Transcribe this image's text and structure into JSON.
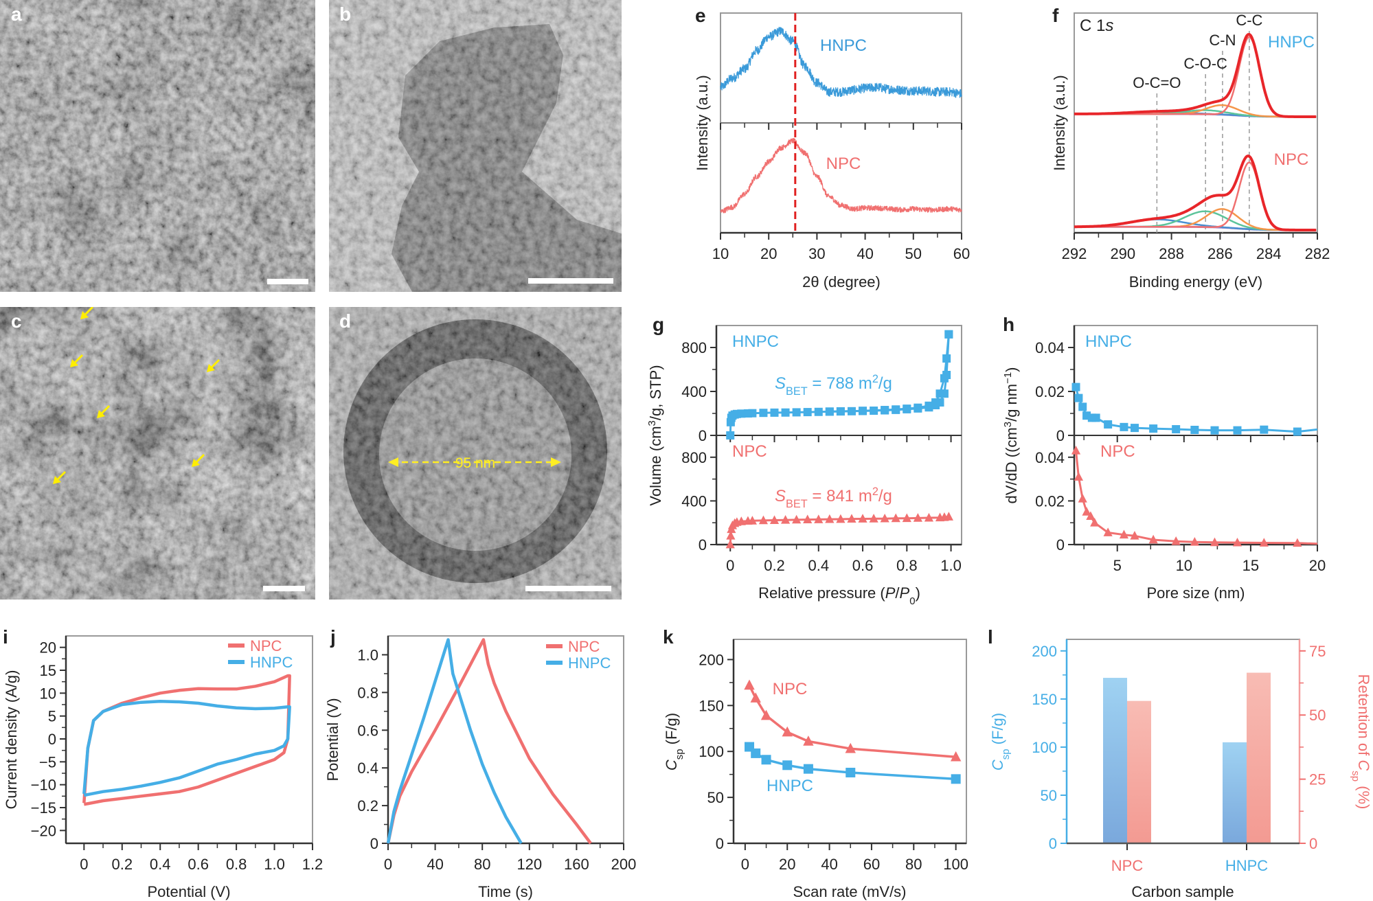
{
  "panel_labels": [
    "a",
    "b",
    "c",
    "d",
    "e",
    "f",
    "g",
    "h",
    "i",
    "j",
    "k",
    "l"
  ],
  "micrographs": {
    "d_annotation": "95 nm"
  },
  "colors": {
    "hnpc": "#45aee6",
    "npc": "#f07070",
    "reference_line": "#e02020",
    "envelope": "#e8262a"
  },
  "chart_data": [
    {
      "type": "line",
      "xlabel": [
        {
          "t": "2θ (degree)"
        }
      ],
      "ylabel": "Intensity (a.u.)",
      "xlim": [
        10,
        60
      ],
      "xticks": [
        "10",
        "20",
        "30",
        "40",
        "50",
        "60"
      ],
      "reference_line_2theta": 25.5,
      "series": [
        {
          "name": "HNPC",
          "x": [
            10,
            12.5,
            15,
            17.5,
            20,
            22.5,
            25,
            27.5,
            30,
            32.5,
            35,
            37.5,
            40,
            42.5,
            45,
            47.5,
            50,
            52.5,
            55,
            57.5,
            60
          ],
          "y": [
            0.35,
            0.45,
            0.55,
            0.75,
            0.9,
            0.96,
            0.85,
            0.58,
            0.4,
            0.3,
            0.3,
            0.32,
            0.34,
            0.35,
            0.33,
            0.32,
            0.31,
            0.31,
            0.3,
            0.3,
            0.28
          ]
        },
        {
          "name": "NPC",
          "x": [
            10,
            12.5,
            15,
            17.5,
            20,
            22.5,
            25,
            27.5,
            30,
            32.5,
            35,
            37.5,
            40,
            42.5,
            45,
            47.5,
            50,
            52.5,
            55,
            57.5,
            60
          ],
          "y": [
            0.15,
            0.2,
            0.35,
            0.55,
            0.72,
            0.88,
            0.96,
            0.82,
            0.55,
            0.32,
            0.22,
            0.18,
            0.19,
            0.19,
            0.18,
            0.17,
            0.18,
            0.17,
            0.17,
            0.18,
            0.17
          ]
        }
      ]
    },
    {
      "type": "line",
      "title_parts": [
        {
          "t": "C 1"
        },
        {
          "t": "s",
          "it": true
        }
      ],
      "xlabel": [
        {
          "t": "Binding energy (eV)"
        }
      ],
      "ylabel": "Intensity (a.u.)",
      "xlim": [
        292,
        282
      ],
      "xticks": [
        "292",
        "290",
        "288",
        "286",
        "284",
        "282"
      ],
      "components": [
        {
          "name": "C-C",
          "center": 284.8,
          "sigma": 0.42,
          "color": "#f07070"
        },
        {
          "name": "C-N",
          "center": 285.9,
          "sigma": 0.65,
          "color": "#f5964a"
        },
        {
          "name": "C-O-C",
          "center": 286.6,
          "sigma": 0.85,
          "color": "#5cc49a"
        },
        {
          "name": "O-C=O",
          "center": 288.6,
          "sigma": 1.1,
          "color": "#4a8fd0"
        }
      ],
      "background_color": "#a68bd0",
      "series": [
        {
          "name": "HNPC",
          "amplitudes": [
            1.0,
            0.12,
            0.05,
            0.03
          ]
        },
        {
          "name": "NPC",
          "amplitudes": [
            0.72,
            0.2,
            0.17,
            0.08
          ]
        }
      ]
    },
    {
      "type": "scatter",
      "xlabel": [
        {
          "t": "Relative pressure ("
        },
        {
          "t": "P",
          "it": true
        },
        {
          "t": "/"
        },
        {
          "t": "P",
          "it": true
        },
        {
          "t": "0",
          "sub": true
        },
        {
          "t": ")"
        }
      ],
      "ylabel": [
        {
          "t": "Volume (cm"
        },
        {
          "t": "3",
          "sup": true
        },
        {
          "t": "/g, STP)"
        }
      ],
      "xlim": [
        -0.063,
        1.048
      ],
      "ylim": [
        0,
        1000
      ],
      "xticks": [
        "0",
        "0.2",
        "0.4",
        "0.6",
        "0.8",
        "1.0"
      ],
      "yticks": [
        "0",
        "400",
        "800"
      ],
      "series": [
        {
          "name": "HNPC",
          "marker": "square",
          "annotation": [
            {
              "t": "S",
              "it": true
            },
            {
              "t": "BET",
              "sub": true
            },
            {
              "t": " = 788 m"
            },
            {
              "t": "2",
              "sup": true
            },
            {
              "t": "/g"
            }
          ],
          "adsorption": {
            "x": [
              0,
              0.002,
              0.005,
              0.01,
              0.02,
              0.03,
              0.05,
              0.08,
              0.1,
              0.15,
              0.2,
              0.25,
              0.3,
              0.35,
              0.4,
              0.45,
              0.5,
              0.55,
              0.6,
              0.65,
              0.7,
              0.75,
              0.8,
              0.85,
              0.9,
              0.93,
              0.95,
              0.97,
              0.98,
              0.99
            ],
            "y": [
              0,
              120,
              160,
              180,
              190,
              195,
              198,
              200,
              202,
              205,
              207,
              208,
              210,
              212,
              214,
              216,
              218,
              220,
              222,
              225,
              228,
              232,
              238,
              245,
              255,
              275,
              300,
              380,
              550,
              920
            ]
          },
          "desorption": {
            "x": [
              0.99,
              0.98,
              0.97,
              0.95,
              0.93,
              0.9,
              0.85,
              0.8,
              0.75,
              0.7,
              0.6,
              0.5,
              0.45
            ],
            "y": [
              920,
              700,
              520,
              380,
              300,
              270,
              252,
              243,
              236,
              231,
              224,
              219,
              217
            ]
          }
        },
        {
          "name": "NPC",
          "marker": "triangle",
          "annotation": [
            {
              "t": "S",
              "it": true
            },
            {
              "t": "BET",
              "sub": true
            },
            {
              "t": " = 841 m"
            },
            {
              "t": "2",
              "sup": true
            },
            {
              "t": "/g"
            }
          ],
          "adsorption": {
            "x": [
              0,
              0.002,
              0.005,
              0.01,
              0.02,
              0.03,
              0.05,
              0.08,
              0.1,
              0.15,
              0.2,
              0.25,
              0.3,
              0.35,
              0.4,
              0.45,
              0.5,
              0.55,
              0.6,
              0.65,
              0.7,
              0.75,
              0.8,
              0.85,
              0.9,
              0.95,
              0.97,
              0.99
            ],
            "y": [
              0,
              80,
              140,
              175,
              195,
              205,
              212,
              216,
              218,
              221,
              223,
              225,
              227,
              229,
              230,
              232,
              233,
              235,
              236,
              237,
              238,
              240,
              241,
              243,
              245,
              247,
              250,
              255
            ]
          }
        }
      ]
    },
    {
      "type": "scatter",
      "xlabel": [
        {
          "t": "Pore size (nm)"
        }
      ],
      "ylabel": [
        {
          "t": "dV/dD ((cm"
        },
        {
          "t": "3",
          "sup": true
        },
        {
          "t": "/g nm"
        },
        {
          "t": "−1",
          "sup": true
        },
        {
          "t": ")"
        }
      ],
      "xlim": [
        1.77,
        20
      ],
      "ylim": [
        0,
        0.05
      ],
      "xticks": [
        "5",
        "10",
        "15",
        "20"
      ],
      "yticks": [
        "0",
        "0.02",
        "0.04"
      ],
      "series": [
        {
          "name": "HNPC",
          "marker": "square",
          "x": [
            1.9,
            2.1,
            2.4,
            2.7,
            3.1,
            3.4,
            4.3,
            5.5,
            6.3,
            7.7,
            9.4,
            10.8,
            12.3,
            14,
            16,
            18.5,
            20
          ],
          "y": [
            0.022,
            0.017,
            0.013,
            0.009,
            0.008,
            0.008,
            0.005,
            0.0038,
            0.0034,
            0.0031,
            0.0028,
            0.0025,
            0.0023,
            0.0023,
            0.0026,
            0.0017,
            0.0027
          ]
        },
        {
          "name": "NPC",
          "marker": "triangle",
          "x": [
            1.9,
            2.1,
            2.4,
            2.7,
            3.0,
            3.3,
            4.3,
            5.5,
            6.3,
            7.7,
            9.4,
            10.8,
            12.3,
            14,
            16,
            18.5,
            20
          ],
          "y": [
            0.043,
            0.031,
            0.021,
            0.015,
            0.013,
            0.01,
            0.0055,
            0.0045,
            0.004,
            0.0022,
            0.0015,
            0.0012,
            0.001,
            0.0009,
            0.0008,
            0.0007,
            0.0004
          ]
        }
      ]
    },
    {
      "type": "line",
      "xlabel": [
        {
          "t": "Potential (V)"
        }
      ],
      "ylabel": [
        {
          "t": "Current density (A/g)"
        }
      ],
      "xlim": [
        -0.095,
        1.2
      ],
      "ylim": [
        -22.8,
        22.5
      ],
      "xticks": [
        "0",
        "0.2",
        "0.4",
        "0.6",
        "0.8",
        "1.0",
        "1.2"
      ],
      "yticks": [
        "20",
        "15",
        "10",
        "5",
        "0",
        "−5",
        "−10",
        "−15",
        "−20"
      ],
      "legend": "top-right",
      "series": [
        {
          "name": "NPC",
          "x": [
            0,
            0.02,
            0.05,
            0.1,
            0.2,
            0.3,
            0.4,
            0.5,
            0.6,
            0.7,
            0.8,
            0.9,
            1.0,
            1.07,
            1.08,
            1.07,
            1.05,
            1.0,
            0.9,
            0.8,
            0.7,
            0.6,
            0.5,
            0.4,
            0.3,
            0.2,
            0.1,
            0
          ],
          "y": [
            -14,
            -2,
            4,
            6,
            7.8,
            9,
            10,
            10.6,
            11,
            10.9,
            10.9,
            11.5,
            12.5,
            13.8,
            13.8,
            0,
            -3,
            -4.5,
            -6,
            -7.5,
            -9,
            -10.5,
            -11.5,
            -12,
            -12.5,
            -13,
            -13.5,
            -14.3
          ]
        },
        {
          "name": "HNPC",
          "x": [
            0,
            0.02,
            0.05,
            0.1,
            0.2,
            0.3,
            0.4,
            0.5,
            0.6,
            0.7,
            0.8,
            0.9,
            1.0,
            1.07,
            1.08,
            1.07,
            1.05,
            1.0,
            0.9,
            0.8,
            0.7,
            0.6,
            0.5,
            0.4,
            0.3,
            0.2,
            0.1,
            0
          ],
          "y": [
            -12,
            -2,
            4,
            6,
            7.5,
            8,
            8.2,
            8.1,
            7.8,
            7.2,
            6.8,
            6.6,
            6.7,
            7,
            7,
            0,
            -1.5,
            -2.5,
            -3.3,
            -4.5,
            -5.5,
            -7,
            -8.5,
            -9.5,
            -10.3,
            -11,
            -11.5,
            -12.3
          ]
        }
      ]
    },
    {
      "type": "line",
      "xlabel": [
        {
          "t": "Time (s)"
        }
      ],
      "ylabel": [
        {
          "t": "Potential (V)"
        }
      ],
      "xlim": [
        0,
        200
      ],
      "ylim": [
        0,
        1.1
      ],
      "xticks": [
        "0",
        "40",
        "80",
        "120",
        "160",
        "200"
      ],
      "yticks": [
        "0",
        "0.2",
        "0.4",
        "0.6",
        "0.8",
        "1.0"
      ],
      "legend": "top-right",
      "series": [
        {
          "name": "NPC",
          "x": [
            0,
            5,
            10,
            20,
            40,
            60,
            81,
            85,
            90,
            100,
            120,
            140,
            160,
            172
          ],
          "y": [
            0,
            0.15,
            0.25,
            0.38,
            0.6,
            0.83,
            1.08,
            0.95,
            0.85,
            0.7,
            0.45,
            0.26,
            0.1,
            0
          ]
        },
        {
          "name": "HNPC",
          "x": [
            0,
            5,
            10,
            20,
            30,
            40,
            51,
            55,
            60,
            70,
            80,
            90,
            100,
            113
          ],
          "y": [
            0,
            0.17,
            0.28,
            0.47,
            0.66,
            0.86,
            1.08,
            0.9,
            0.8,
            0.6,
            0.42,
            0.27,
            0.14,
            0
          ]
        }
      ]
    },
    {
      "type": "line",
      "xlabel": [
        {
          "t": "Scan rate (mV/s)"
        }
      ],
      "ylabel": [
        {
          "t": "C",
          "it": true
        },
        {
          "t": "sp",
          "sub": true
        },
        {
          "t": " (F/g)"
        }
      ],
      "xlim": [
        -5.5,
        105
      ],
      "ylim": [
        0,
        222
      ],
      "xticks": [
        "0",
        "20",
        "40",
        "60",
        "80",
        "100"
      ],
      "yticks": [
        "0",
        "50",
        "100",
        "150",
        "200"
      ],
      "series": [
        {
          "name": "NPC",
          "marker": "triangle",
          "x": [
            2,
            5,
            10,
            20,
            30,
            50,
            100
          ],
          "y": [
            172,
            158,
            139,
            121,
            111,
            103,
            94
          ]
        },
        {
          "name": "HNPC",
          "marker": "square",
          "x": [
            2,
            5,
            10,
            20,
            30,
            50,
            100
          ],
          "y": [
            105,
            98,
            91,
            85,
            81,
            77,
            70
          ]
        }
      ]
    },
    {
      "type": "bar",
      "xlabel": [
        {
          "t": "Carbon sample"
        }
      ],
      "ylabel": [
        {
          "t": "C",
          "it": true
        },
        {
          "t": "sp",
          "sub": true
        },
        {
          "t": " (F/g)"
        }
      ],
      "ylabel_right": [
        {
          "t": "Retention of "
        },
        {
          "t": "C",
          "it": true
        },
        {
          "t": "sp",
          "sub": true
        },
        {
          "t": " (%)"
        }
      ],
      "categories": [
        "NPC",
        "HNPC"
      ],
      "ylim": [
        0,
        212
      ],
      "ylim_right": [
        0,
        79.5
      ],
      "yticks": [
        "0",
        "50",
        "100",
        "150",
        "200"
      ],
      "yticks_right": [
        "0",
        "25",
        "50",
        "75"
      ],
      "series": [
        {
          "axis": "left",
          "values": [
            172,
            105
          ]
        },
        {
          "axis": "right",
          "values": [
            55.5,
            66.5
          ]
        }
      ]
    }
  ]
}
